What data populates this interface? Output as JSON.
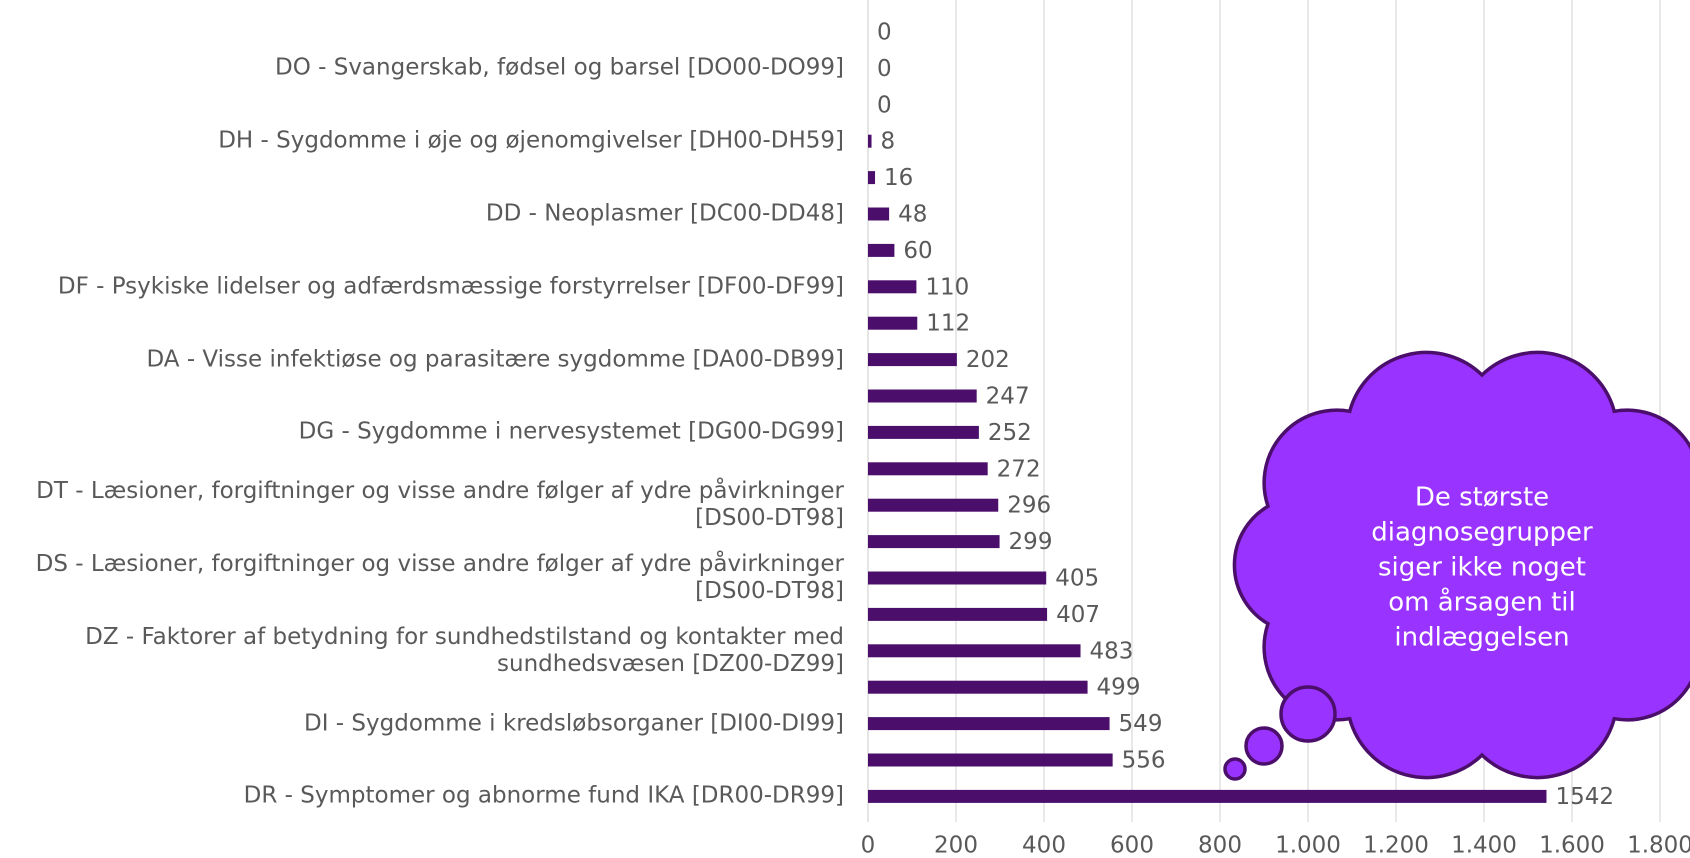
{
  "chart_data": {
    "type": "bar",
    "orientation": "horizontal",
    "categories": [
      null,
      "DO - Svangerskab, fødsel og barsel [DO00-DO99]",
      null,
      "DH - Sygdomme i øje og øjenomgivelser [DH00-DH59]",
      null,
      "DD - Neoplasmer [DC00-DD48]",
      null,
      "DF - Psykiske lidelser og adfærdsmæssige forstyrrelser [DF00-DF99]",
      null,
      "DA - Visse infektiøse og parasitære sygdomme [DA00-DB99]",
      null,
      "DG - Sygdomme i nervesystemet [DG00-DG99]",
      null,
      "DT - Læsioner, forgiftninger og visse andre følger af ydre påvirkninger [DS00-DT98]",
      null,
      "DS - Læsioner, forgiftninger og visse andre følger af ydre påvirkninger [DS00-DT98]",
      null,
      "DZ - Faktorer af betydning for sundhedstilstand og kontakter med sundhedsvæsen [DZ00-DZ99]",
      null,
      "DI - Sygdomme i kredsløbsorganer [DI00-DI99]",
      null,
      "DR - Symptomer og abnorme fund IKA [DR00-DR99]"
    ],
    "values": [
      0,
      0,
      0,
      8,
      16,
      48,
      60,
      110,
      112,
      202,
      247,
      252,
      272,
      296,
      299,
      405,
      407,
      483,
      499,
      549,
      556,
      1542
    ],
    "color": "#4b0f6b",
    "xlim": [
      0,
      1800
    ],
    "xticks": [
      0,
      200,
      400,
      600,
      800,
      {
        "value": 1000,
        "label": "1.000"
      },
      {
        "value": 1200,
        "label": "1.200"
      },
      {
        "value": 1400,
        "label": "1.400"
      },
      {
        "value": 1600,
        "label": "1.600"
      },
      {
        "value": 1800,
        "label": "1.800"
      }
    ],
    "grid": true,
    "annotation": [
      "De største",
      "diagnosegrupper",
      "siger ikke noget",
      "om årsagen til",
      "indlæggelsen"
    ]
  }
}
